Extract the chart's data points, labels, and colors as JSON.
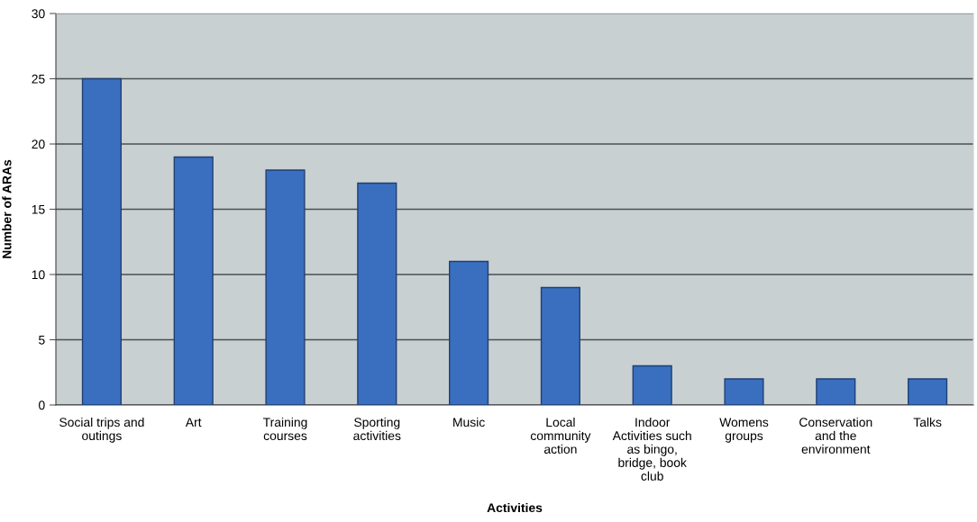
{
  "chart_data": {
    "type": "bar",
    "categories": [
      "Social trips and\noutings",
      "Art",
      "Training\ncourses",
      "Sporting\nactivities",
      "Music",
      "Local\ncommunity\naction",
      "Indoor\nActivities such\nas bingo,\nbridge, book\nclub",
      "Womens\ngroups",
      "Conservation\nand the\nenvironment",
      "Talks"
    ],
    "values": [
      25,
      19,
      18,
      17,
      11,
      9,
      3,
      2,
      2,
      2
    ],
    "color": "#3a6fbf",
    "xlabel": "Activities",
    "ylabel": "Number of ARAs",
    "ylim": [
      0,
      30
    ],
    "yticks": [
      0,
      5,
      10,
      15,
      20,
      25,
      30
    ],
    "grid": "y",
    "legend": false
  }
}
